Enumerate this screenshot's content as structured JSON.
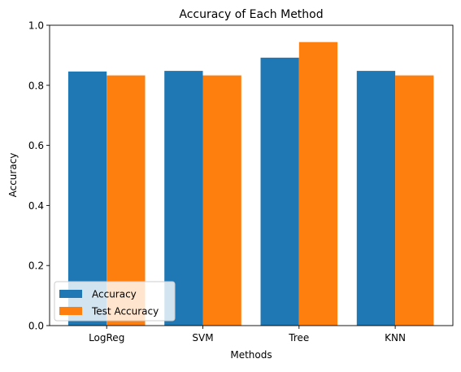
{
  "chart_data": {
    "type": "bar",
    "title": "Accuracy of Each Method",
    "xlabel": "Methods",
    "ylabel": "Accuracy",
    "categories": [
      "LogReg",
      "SVM",
      "Tree",
      "KNN"
    ],
    "series": [
      {
        "name": "Accuracy",
        "values": [
          0.846,
          0.848,
          0.892,
          0.848
        ],
        "color": "#1f77b4"
      },
      {
        "name": "Test Accuracy",
        "values": [
          0.833,
          0.833,
          0.944,
          0.833
        ],
        "color": "#ff7f0e"
      }
    ],
    "ylim": [
      0.0,
      1.0
    ],
    "yticks": [
      "0.0",
      "0.2",
      "0.4",
      "0.6",
      "0.8",
      "1.0"
    ],
    "grid": false,
    "legend_position": "lower-left"
  }
}
